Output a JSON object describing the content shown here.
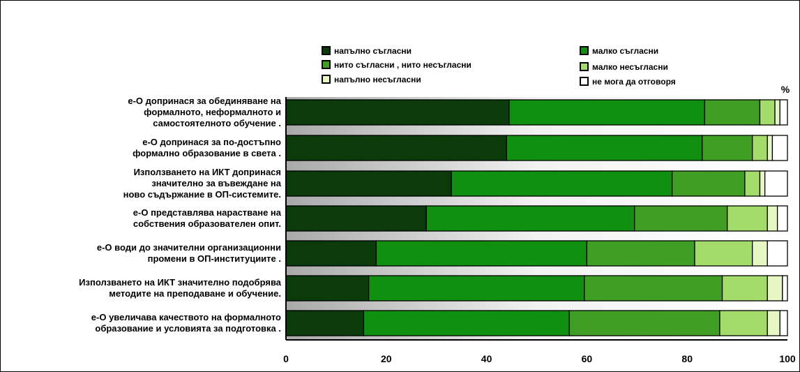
{
  "chart_data": {
    "type": "bar",
    "orientation": "horizontal",
    "stacked": true,
    "title": "",
    "xlabel": "",
    "ylabel": "",
    "unit_label": "%",
    "xlim": [
      0,
      100
    ],
    "xticks": [
      0,
      20,
      40,
      60,
      80,
      100
    ],
    "grid": false,
    "legend_position": "top",
    "categories": [
      [
        "е-О допринася за обединяване на",
        "формалното, неформалното и",
        "самостоятелното обучение ."
      ],
      [
        "е-О допринася за по-достъпно",
        "формално образование в света ."
      ],
      [
        "Използването на ИКТ допринася",
        "значително за въвеждане на",
        "ново съдържание в ОП-системите."
      ],
      [
        "е-О представлява нарастване на",
        "собствения образователен опит."
      ],
      [
        "е-О води до значителни организационни",
        "промени в ОП-институциите ."
      ],
      [
        "Използването на ИКТ значително подобрява",
        "методите на преподаване и обучение."
      ],
      [
        "е-О увеличава качеството на  формалното",
        "образование и условията за подготовка ."
      ]
    ],
    "series": [
      {
        "name": "напълно съгласни",
        "color": "#0b3a0b",
        "values": [
          44.5,
          44,
          33,
          28,
          18,
          16.5,
          15.5
        ]
      },
      {
        "name": "малко съгласни",
        "color": "#118f11",
        "values": [
          39,
          39,
          44,
          41.5,
          42,
          43,
          41
        ]
      },
      {
        "name": "нито съгласни , нито несъгласни",
        "color": "#3f9f25",
        "values": [
          11,
          10,
          14.5,
          18.5,
          21.5,
          27.5,
          30
        ]
      },
      {
        "name": "малко несъгласни",
        "color": "#a3dc6a",
        "values": [
          3,
          3,
          3,
          8,
          11.5,
          9,
          9.5
        ]
      },
      {
        "name": "напълно несъгласни",
        "color": "#e6f7c4",
        "values": [
          1,
          1,
          1,
          2,
          3,
          3,
          2.5
        ]
      },
      {
        "name": "не мога да отговоря",
        "color": "#ffffff",
        "values": [
          1.5,
          3,
          4.5,
          2,
          4,
          1,
          1.5
        ]
      }
    ]
  }
}
